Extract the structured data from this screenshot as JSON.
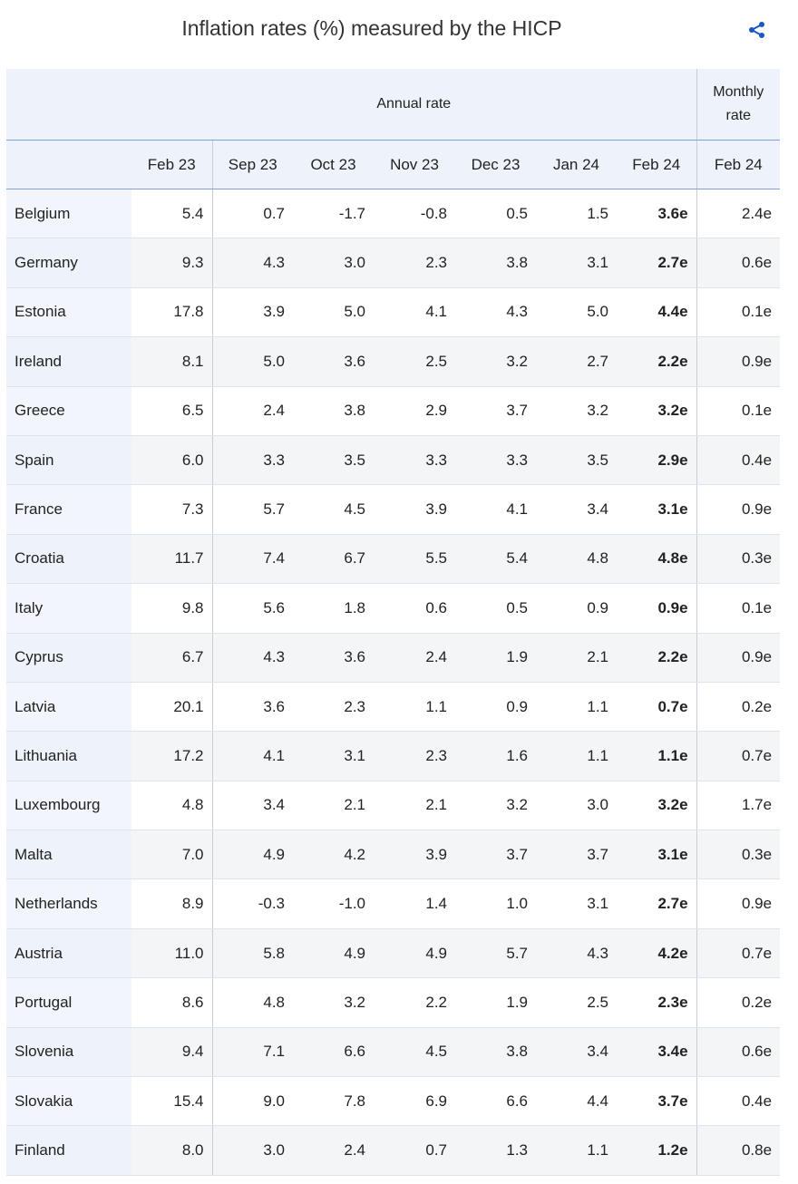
{
  "header": {
    "title": "Inflation rates (%) measured by the HICP"
  },
  "table": {
    "groups": [
      "Annual rate",
      "Monthly rate"
    ],
    "columns": [
      "Feb 23",
      "Sep 23",
      "Oct 23",
      "Nov 23",
      "Dec 23",
      "Jan 24",
      "Feb 24",
      "Feb 24"
    ],
    "rows": [
      [
        "Belgium",
        "5.4",
        "0.7",
        "-1.7",
        "-0.8",
        "0.5",
        "1.5",
        "3.6e",
        "2.4e"
      ],
      [
        "Germany",
        "9.3",
        "4.3",
        "3.0",
        "2.3",
        "3.8",
        "3.1",
        "2.7e",
        "0.6e"
      ],
      [
        "Estonia",
        "17.8",
        "3.9",
        "5.0",
        "4.1",
        "4.3",
        "5.0",
        "4.4e",
        "0.1e"
      ],
      [
        "Ireland",
        "8.1",
        "5.0",
        "3.6",
        "2.5",
        "3.2",
        "2.7",
        "2.2e",
        "0.9e"
      ],
      [
        "Greece",
        "6.5",
        "2.4",
        "3.8",
        "2.9",
        "3.7",
        "3.2",
        "3.2e",
        "0.1e"
      ],
      [
        "Spain",
        "6.0",
        "3.3",
        "3.5",
        "3.3",
        "3.3",
        "3.5",
        "2.9e",
        "0.4e"
      ],
      [
        "France",
        "7.3",
        "5.7",
        "4.5",
        "3.9",
        "4.1",
        "3.4",
        "3.1e",
        "0.9e"
      ],
      [
        "Croatia",
        "11.7",
        "7.4",
        "6.7",
        "5.5",
        "5.4",
        "4.8",
        "4.8e",
        "0.3e"
      ],
      [
        "Italy",
        "9.8",
        "5.6",
        "1.8",
        "0.6",
        "0.5",
        "0.9",
        "0.9e",
        "0.1e"
      ],
      [
        "Cyprus",
        "6.7",
        "4.3",
        "3.6",
        "2.4",
        "1.9",
        "2.1",
        "2.2e",
        "0.9e"
      ],
      [
        "Latvia",
        "20.1",
        "3.6",
        "2.3",
        "1.1",
        "0.9",
        "1.1",
        "0.7e",
        "0.2e"
      ],
      [
        "Lithuania",
        "17.2",
        "4.1",
        "3.1",
        "2.3",
        "1.6",
        "1.1",
        "1.1e",
        "0.7e"
      ],
      [
        "Luxembourg",
        "4.8",
        "3.4",
        "2.1",
        "2.1",
        "3.2",
        "3.0",
        "3.2e",
        "1.7e"
      ],
      [
        "Malta",
        "7.0",
        "4.9",
        "4.2",
        "3.9",
        "3.7",
        "3.7",
        "3.1e",
        "0.3e"
      ],
      [
        "Netherlands",
        "8.9",
        "-0.3",
        "-1.0",
        "1.4",
        "1.0",
        "3.1",
        "2.7e",
        "0.9e"
      ],
      [
        "Austria",
        "11.0",
        "5.8",
        "4.9",
        "4.9",
        "5.7",
        "4.3",
        "4.2e",
        "0.7e"
      ],
      [
        "Portugal",
        "8.6",
        "4.8",
        "3.2",
        "2.2",
        "1.9",
        "2.5",
        "2.3e",
        "0.2e"
      ],
      [
        "Slovenia",
        "9.4",
        "7.1",
        "6.6",
        "4.5",
        "3.8",
        "3.4",
        "3.4e",
        "0.6e"
      ],
      [
        "Slovakia",
        "15.4",
        "9.0",
        "7.8",
        "6.9",
        "6.6",
        "4.4",
        "3.7e",
        "0.4e"
      ],
      [
        "Finland",
        "8.0",
        "3.0",
        "2.4",
        "0.7",
        "1.3",
        "1.1",
        "1.2e",
        "0.8e"
      ]
    ]
  }
}
